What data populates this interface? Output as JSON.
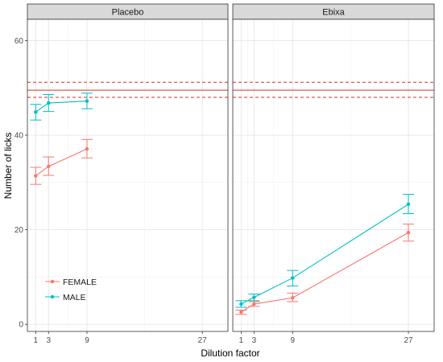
{
  "chart_data": {
    "type": "line",
    "xlabel": "Dilution factor",
    "ylabel": "Number of licks",
    "xlim": [
      -0.3,
      31.0
    ],
    "ylim": [
      -1.5,
      64.5
    ],
    "x_ticks": [
      1,
      3,
      9,
      27
    ],
    "y_ticks": [
      0,
      20,
      40,
      60
    ],
    "grid": true,
    "legend_placement": "bottom-left (inside Placebo panel)",
    "reference_lines": {
      "solid": 49.5,
      "dashed": [
        48.0,
        51.2
      ],
      "color": "#d73027"
    },
    "series_colors": {
      "FEMALE": "#f8766d",
      "MALE": "#00bfc4"
    },
    "legend": [
      {
        "name": "FEMALE",
        "color": "#f8766d"
      },
      {
        "name": "MALE",
        "color": "#00bfc4"
      }
    ],
    "panels": [
      {
        "title": "Placebo",
        "series": [
          {
            "name": "FEMALE",
            "points": [
              {
                "x": 1,
                "y": 31.4,
                "lo": 29.6,
                "hi": 33.2
              },
              {
                "x": 3,
                "y": 33.4,
                "lo": 31.5,
                "hi": 35.4
              },
              {
                "x": 9,
                "y": 37.1,
                "lo": 35.2,
                "hi": 39.1
              }
            ]
          },
          {
            "name": "MALE",
            "points": [
              {
                "x": 1,
                "y": 44.9,
                "lo": 43.2,
                "hi": 46.5
              },
              {
                "x": 3,
                "y": 46.8,
                "lo": 45.0,
                "hi": 48.6
              },
              {
                "x": 9,
                "y": 47.2,
                "lo": 45.6,
                "hi": 48.9
              }
            ]
          }
        ]
      },
      {
        "title": "Ebixa",
        "series": [
          {
            "name": "FEMALE",
            "points": [
              {
                "x": 1,
                "y": 2.6,
                "lo": 2.1,
                "hi": 3.0
              },
              {
                "x": 3,
                "y": 4.3,
                "lo": 3.8,
                "hi": 4.8
              },
              {
                "x": 9,
                "y": 5.6,
                "lo": 4.8,
                "hi": 6.6
              },
              {
                "x": 27,
                "y": 19.4,
                "lo": 17.6,
                "hi": 21.2
              }
            ]
          },
          {
            "name": "MALE",
            "points": [
              {
                "x": 1,
                "y": 4.3,
                "lo": 3.6,
                "hi": 5.0
              },
              {
                "x": 3,
                "y": 5.7,
                "lo": 5.0,
                "hi": 6.4
              },
              {
                "x": 9,
                "y": 9.8,
                "lo": 8.1,
                "hi": 11.4
              },
              {
                "x": 27,
                "y": 25.4,
                "lo": 23.4,
                "hi": 27.5
              }
            ]
          }
        ]
      }
    ]
  }
}
